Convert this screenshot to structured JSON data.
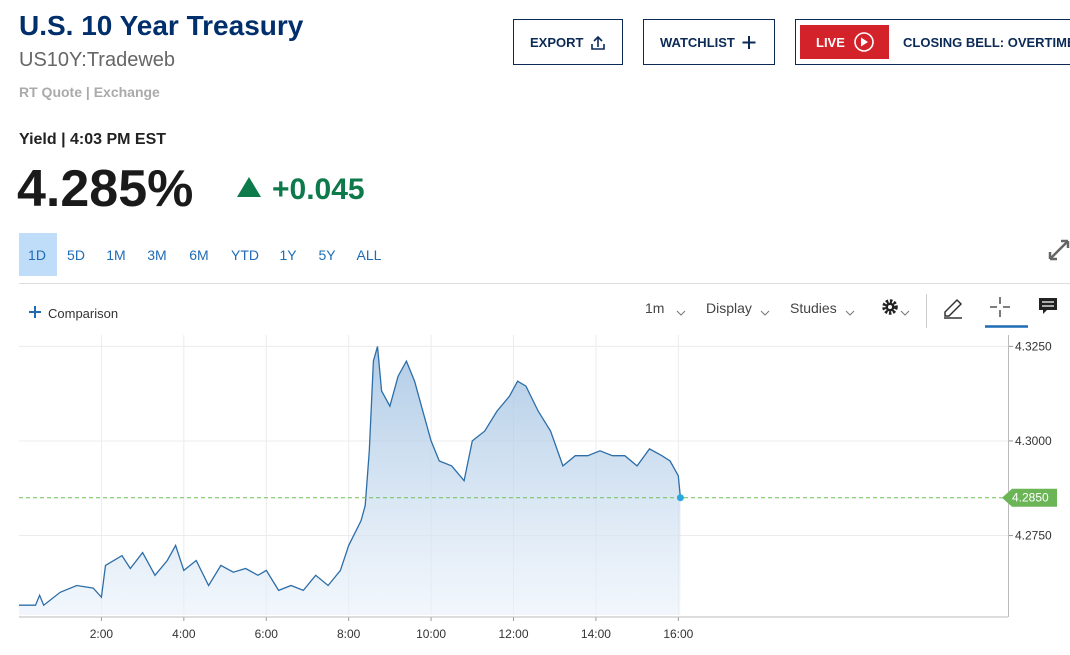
{
  "header": {
    "title": "U.S. 10 Year Treasury",
    "symbol": "US10Y:Tradeweb",
    "quote_source": "RT Quote | Exchange",
    "quote_time": "Yield | 4:03 PM EST",
    "price": "4.285%",
    "change": "+0.045"
  },
  "buttons": {
    "export": "EXPORT",
    "watchlist": "WATCHLIST",
    "live": "LIVE",
    "live_show": "CLOSING BELL: OVERTIME"
  },
  "range_tabs": [
    "1D",
    "5D",
    "1M",
    "3M",
    "6M",
    "YTD",
    "1Y",
    "5Y",
    "ALL"
  ],
  "toolbar": {
    "comparison": "Comparison",
    "interval": "1m",
    "display": "Display",
    "studies": "Studies"
  },
  "chart_data": {
    "type": "line",
    "color": "#2d6ea8",
    "x": [
      0,
      0.4,
      0.5,
      0.6,
      1.0,
      1.4,
      1.8,
      2.0,
      2.1,
      2.5,
      2.7,
      3.0,
      3.3,
      3.6,
      3.8,
      4.0,
      4.3,
      4.6,
      4.9,
      5.2,
      5.5,
      5.8,
      6.0,
      6.3,
      6.6,
      6.9,
      7.2,
      7.5,
      7.8,
      8.0,
      8.3,
      8.4,
      8.5,
      8.6,
      8.7,
      8.8,
      9.0,
      9.2,
      9.4,
      9.6,
      9.8,
      10.0,
      10.2,
      10.5,
      10.8,
      11.0,
      11.3,
      11.6,
      11.9,
      12.1,
      12.3,
      12.6,
      12.9,
      13.2,
      13.5,
      13.8,
      14.1,
      14.4,
      14.7,
      15.0,
      15.3,
      15.6,
      15.8,
      16.0,
      16.05
    ],
    "values": [
      4.2566,
      4.2566,
      4.2592,
      4.2566,
      4.26,
      4.2618,
      4.2611,
      4.2587,
      4.2671,
      4.2697,
      4.2663,
      4.2705,
      4.2645,
      4.2684,
      4.2724,
      4.2658,
      4.2684,
      4.2618,
      4.2671,
      4.2653,
      4.2663,
      4.2645,
      4.2658,
      4.2605,
      4.2618,
      4.2605,
      4.2645,
      4.2618,
      4.2658,
      4.2724,
      4.2789,
      4.2829,
      4.2974,
      4.3211,
      4.325,
      4.3132,
      4.3092,
      4.3171,
      4.3211,
      4.3158,
      4.3079,
      4.3,
      4.2947,
      4.2934,
      4.2895,
      4.3,
      4.3026,
      4.3079,
      4.3118,
      4.3158,
      4.3145,
      4.3079,
      4.3026,
      4.2934,
      4.2961,
      4.2961,
      4.2974,
      4.2961,
      4.2961,
      4.2934,
      4.2979,
      4.2961,
      4.2947,
      4.2908,
      4.285
    ],
    "last_label": "4.2850",
    "xlim": [
      0,
      24
    ],
    "xticks": [
      {
        "value": 2,
        "label": "2:00"
      },
      {
        "value": 4,
        "label": "4:00"
      },
      {
        "value": 6,
        "label": "6:00"
      },
      {
        "value": 8,
        "label": "8:00"
      },
      {
        "value": 10,
        "label": "10:00"
      },
      {
        "value": 12,
        "label": "12:00"
      },
      {
        "value": 14,
        "label": "14:00"
      },
      {
        "value": 16,
        "label": "16:00"
      }
    ],
    "ylim": [
      4.254,
      4.328
    ],
    "yticks": [
      {
        "value": 4.275,
        "label": "4.2750"
      },
      {
        "value": 4.3,
        "label": "4.3000"
      },
      {
        "value": 4.325,
        "label": "4.3250"
      }
    ],
    "grid": true
  }
}
